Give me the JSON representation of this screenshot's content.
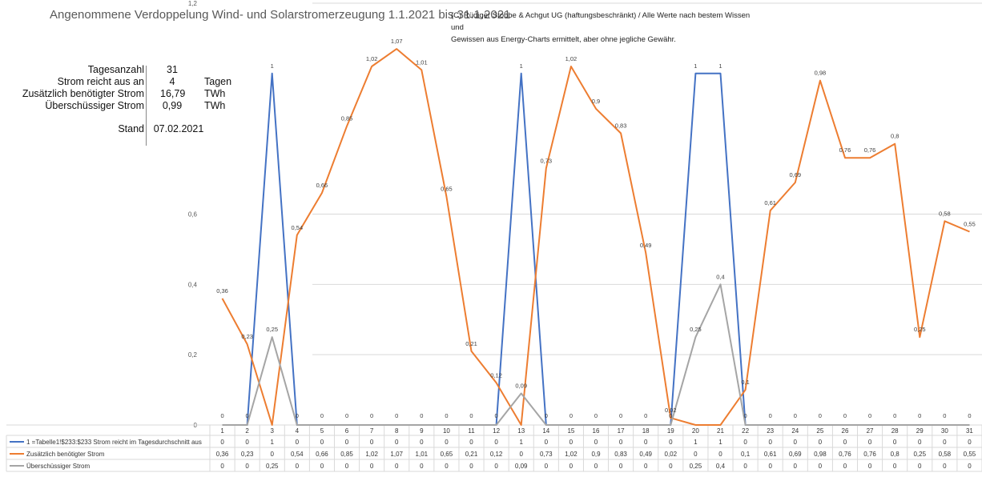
{
  "title": "Angenommene Verdoppelung Wind- und Solarstromerzeugung 1.1.2021 bis 31.1.2021",
  "copyright_line1": "(C) Rüdiger Stobbe & Achgut UG (haftungsbeschränkt) / Alle Werte nach bestem Wissen und",
  "copyright_line2": "Gewissen aus Energy-Charts ermittelt, aber ohne jegliche Gewähr.",
  "stats": [
    {
      "label": "Tagesanzahl",
      "value": "31",
      "unit": ""
    },
    {
      "label": "Strom reicht aus an",
      "value": "4",
      "unit": "Tagen"
    },
    {
      "label": "Zusätzlich benötigter Strom",
      "value": "16,79",
      "unit": "TWh"
    },
    {
      "label": "Überschüssiger Strom",
      "value": "0,99",
      "unit": "TWh"
    }
  ],
  "stand_label": "Stand",
  "stand_value": "07.02.2021",
  "colors": {
    "blue": "#4472c4",
    "orange": "#ed7d31",
    "gray": "#a5a5a5"
  },
  "chart_data": {
    "type": "line",
    "x": [
      1,
      2,
      3,
      4,
      5,
      6,
      7,
      8,
      9,
      10,
      11,
      12,
      13,
      14,
      15,
      16,
      17,
      18,
      19,
      20,
      21,
      22,
      23,
      24,
      25,
      26,
      27,
      28,
      29,
      30,
      31
    ],
    "y_ticks": [
      "0",
      "0,2",
      "0,4",
      "0,6",
      "1,2"
    ],
    "ylim": [
      0,
      1.2
    ],
    "grid": true,
    "legend": "data-table below chart",
    "series": [
      {
        "name": "1 =Tabelle1!$233:$233 Strom reicht im Tagesdurchschnitt aus",
        "values": [
          0,
          0,
          1,
          0,
          0,
          0,
          0,
          0,
          0,
          0,
          0,
          0,
          1,
          0,
          0,
          0,
          0,
          0,
          0,
          1,
          1,
          0,
          0,
          0,
          0,
          0,
          0,
          0,
          0,
          0,
          0
        ],
        "labels": [
          "0",
          "0",
          "1",
          "0",
          "0",
          "0",
          "0",
          "0",
          "0",
          "0",
          "0",
          "0",
          "1",
          "0",
          "0",
          "0",
          "0",
          "0",
          "0",
          "1",
          "1",
          "0",
          "0",
          "0",
          "0",
          "0",
          "0",
          "0",
          "0",
          "0",
          "0"
        ]
      },
      {
        "name": "Zusätzlich benötigter Strom",
        "values": [
          0.36,
          0.23,
          0,
          0.54,
          0.66,
          0.85,
          1.02,
          1.07,
          1.01,
          0.65,
          0.21,
          0.12,
          0,
          0.73,
          1.02,
          0.9,
          0.83,
          0.49,
          0.02,
          0,
          0,
          0.1,
          0.61,
          0.69,
          0.98,
          0.76,
          0.76,
          0.8,
          0.25,
          0.58,
          0.55
        ],
        "labels": [
          "0,36",
          "0,23",
          "0",
          "0,54",
          "0,66",
          "0,85",
          "1,02",
          "1,07",
          "1,01",
          "0,65",
          "0,21",
          "0,12",
          "0",
          "0,73",
          "1,02",
          "0,9",
          "0,83",
          "0,49",
          "0,02",
          "0",
          "0",
          "0,1",
          "0,61",
          "0,69",
          "0,98",
          "0,76",
          "0,76",
          "0,8",
          "0,25",
          "0,58",
          "0,55"
        ]
      },
      {
        "name": "Überschüssiger Strom",
        "values": [
          0,
          0,
          0.25,
          0,
          0,
          0,
          0,
          0,
          0,
          0,
          0,
          0,
          0.09,
          0,
          0,
          0,
          0,
          0,
          0,
          0.25,
          0.4,
          0,
          0,
          0,
          0,
          0,
          0,
          0,
          0,
          0,
          0
        ],
        "labels": [
          "0",
          "0",
          "0,25",
          "0",
          "0",
          "0",
          "0",
          "0",
          "0",
          "0",
          "0",
          "0",
          "0,09",
          "0",
          "0",
          "0",
          "0",
          "0",
          "0",
          "0,25",
          "0,4",
          "0",
          "0",
          "0",
          "0",
          "0",
          "0",
          "0",
          "0",
          "0",
          "0"
        ]
      }
    ]
  }
}
